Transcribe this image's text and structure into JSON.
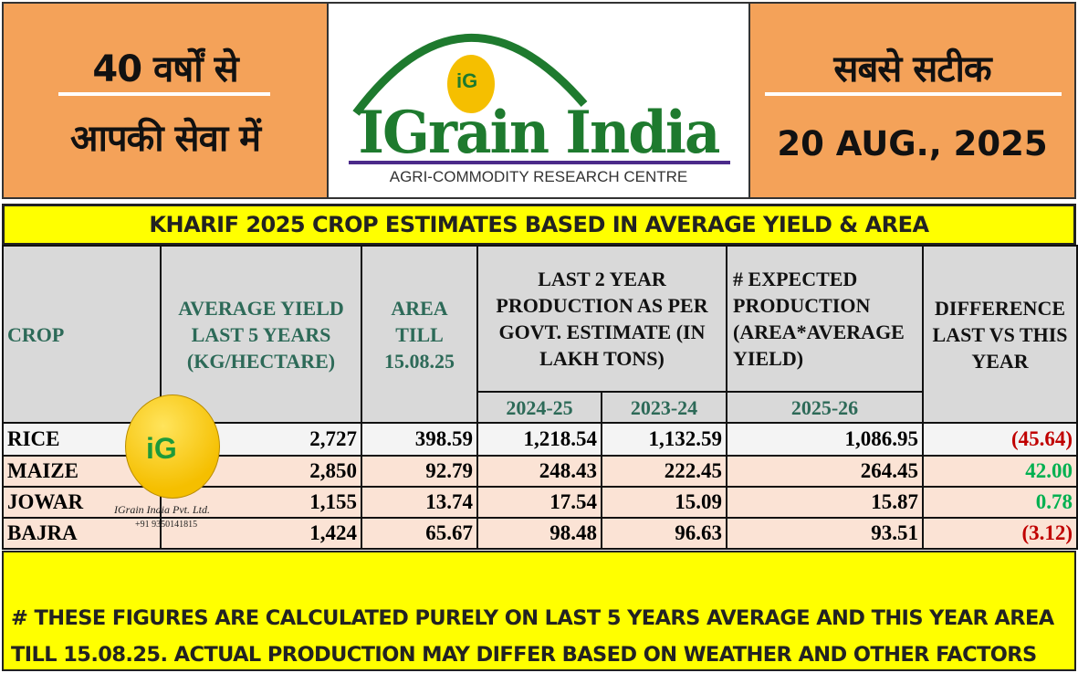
{
  "header": {
    "left_line1": "40 वर्षों से",
    "left_line2": "आपकी सेवा में",
    "right_line1": "सबसे सटीक",
    "date": "20 AUG., 2025",
    "logo_name": "IGrain India",
    "logo_badge": "iG",
    "logo_tagline": "AGRI-COMMODITY RESEARCH CENTRE"
  },
  "title": "KHARIF 2025 CROP ESTIMATES BASED IN AVERAGE YIELD & AREA",
  "table": {
    "headers": {
      "crop": "CROP",
      "avg_yield": "AVERAGE YIELD LAST 5 YEARS (KG/HECTARE)",
      "area": "AREA TILL 15.08.25",
      "last2": "LAST 2 YEAR PRODUCTION AS PER GOVT. ESTIMATE (IN LAKH TONS)",
      "expected": "# EXPECTED PRODUCTION (AREA*AVERAGE YIELD)",
      "difference": "DIFFERENCE LAST VS THIS YEAR",
      "y2024": "2024-25",
      "y2023": "2023-24",
      "y2025": "2025-26"
    },
    "rows": [
      {
        "crop": "RICE",
        "yield": "2,727",
        "area": "398.59",
        "p2024": "1,218.54",
        "p2023": "1,132.59",
        "exp": "1,086.95",
        "diff": "(45.64)",
        "sign": "neg"
      },
      {
        "crop": "MAIZE",
        "yield": "2,850",
        "area": "92.79",
        "p2024": "248.43",
        "p2023": "222.45",
        "exp": "264.45",
        "diff": "42.00",
        "sign": "pos"
      },
      {
        "crop": "JOWAR",
        "yield": "1,155",
        "area": "13.74",
        "p2024": "17.54",
        "p2023": "15.09",
        "exp": "15.87",
        "diff": "0.78",
        "sign": "pos"
      },
      {
        "crop": "BAJRA",
        "yield": "1,424",
        "area": "65.67",
        "p2024": "98.48",
        "p2023": "96.63",
        "exp": "93.51",
        "diff": "(3.12)",
        "sign": "neg"
      }
    ]
  },
  "watermark": {
    "badge": "iG",
    "company": "IGrain India Pvt. Ltd.",
    "phone": "+91 9350141815"
  },
  "footer": {
    "line1": "# THESE FIGURES ARE CALCULATED PURELY ON LAST 5 YEARS AVERAGE AND THIS YEAR AREA",
    "line2": "TILL 15.08.25. ACTUAL PRODUCTION MAY DIFFER BASED ON WEATHER AND OTHER FACTORS"
  },
  "colors": {
    "orange": "#f4a259",
    "yellow": "#ffff00",
    "green": "#1e7a2e",
    "neg": "#c00000",
    "pos": "#00b050"
  }
}
